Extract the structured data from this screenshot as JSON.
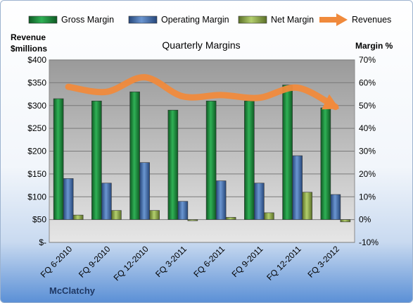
{
  "chart_data": {
    "type": "bar",
    "title": "Quarterly Margins",
    "company": "McClatchy",
    "left_axis_title": [
      "Revenue",
      "$millions"
    ],
    "right_axis_title": "Margin %",
    "left_axis": {
      "range": [
        0,
        400
      ],
      "ticks": [
        "$-",
        "$50",
        "$100",
        "$150",
        "$200",
        "$250",
        "$300",
        "$350",
        "$400"
      ]
    },
    "right_axis": {
      "range": [
        -10,
        70
      ],
      "ticks": [
        "-10%",
        "0%",
        "10%",
        "20%",
        "30%",
        "40%",
        "50%",
        "60%",
        "70%"
      ]
    },
    "categories": [
      "FQ 6-2010",
      "FQ 9-2010",
      "FQ 12-2010",
      "FQ 3-2011",
      "FQ 6-2011",
      "FQ 9-2011",
      "FQ 12-2011",
      "FQ 3-2012"
    ],
    "series": [
      {
        "name": "Gross Margin",
        "axis": "right",
        "kind": "bar",
        "color": "#1e8a3c",
        "values": [
          53,
          52,
          56,
          48,
          52,
          52,
          59,
          49
        ]
      },
      {
        "name": "Operating Margin",
        "axis": "right",
        "kind": "bar",
        "color": "#4f81bd",
        "values": [
          18,
          16,
          25,
          8,
          17,
          16,
          28,
          11
        ]
      },
      {
        "name": "Net Margin",
        "axis": "right",
        "kind": "bar",
        "color": "#9bbb59",
        "values": [
          2,
          4,
          4,
          -0.5,
          1,
          3,
          12,
          -1
        ]
      },
      {
        "name": "Revenues",
        "axis": "left",
        "kind": "line",
        "color": "#f08a3c",
        "values": [
          341,
          330,
          362,
          320,
          323,
          317,
          339,
          297
        ]
      }
    ],
    "grid": true,
    "legend_position": "top"
  }
}
